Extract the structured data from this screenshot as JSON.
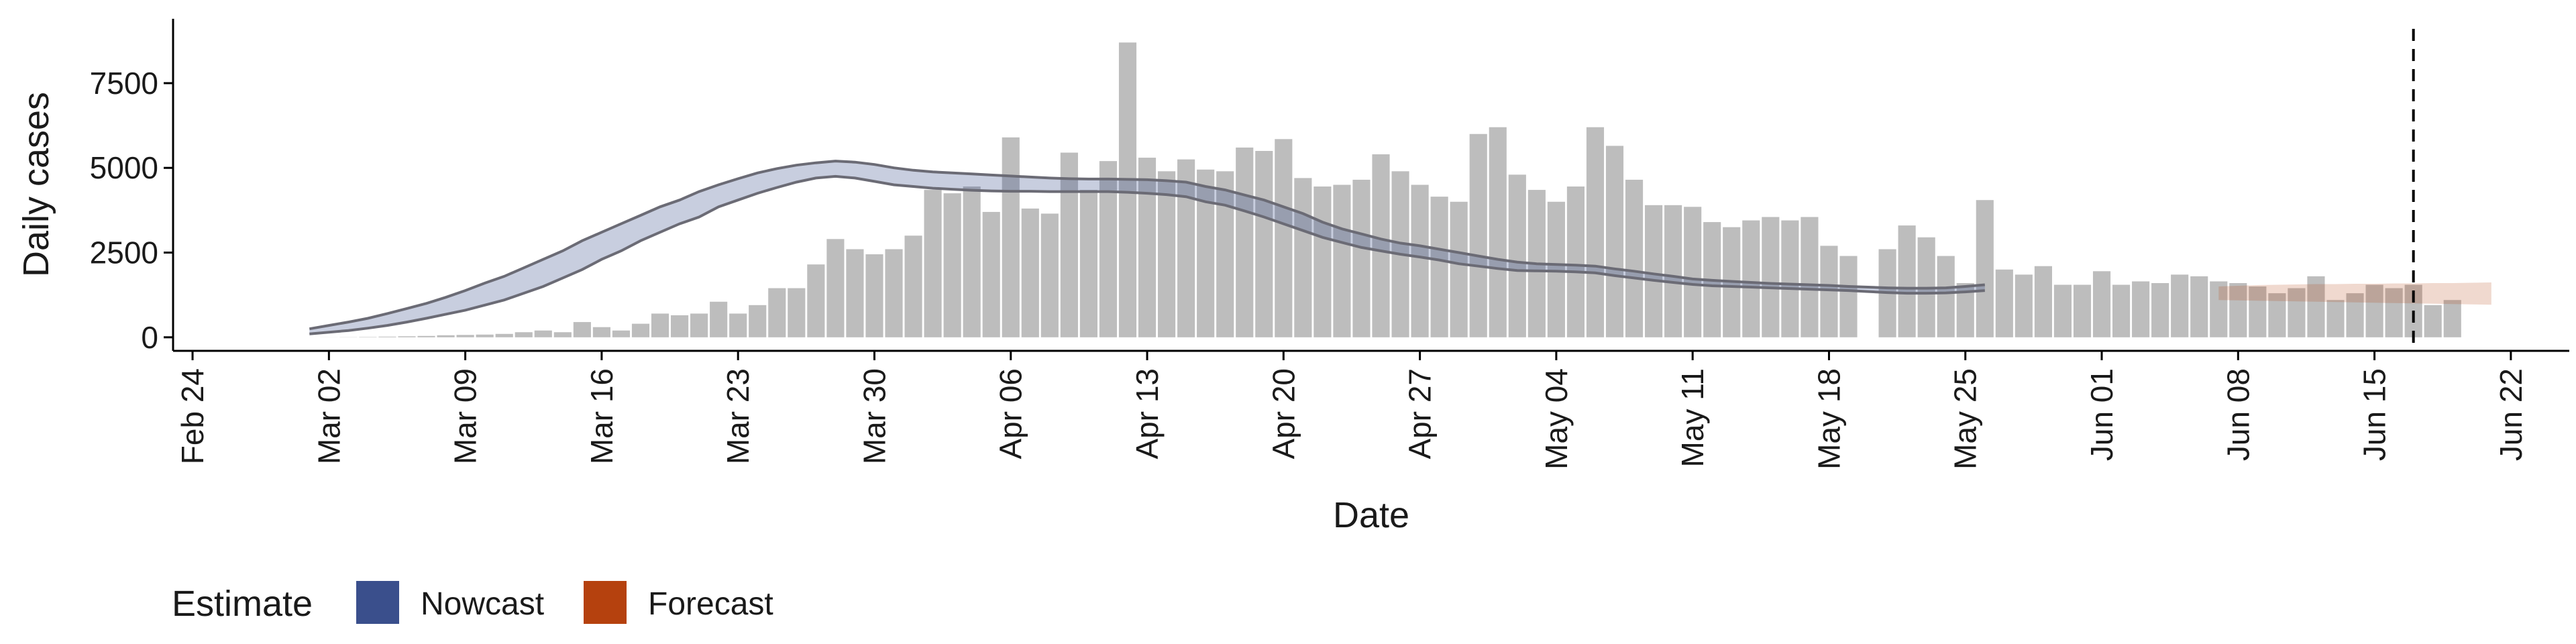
{
  "chart_data": {
    "type": "bar",
    "title": "",
    "xlabel": "Date",
    "ylabel": "Daily cases",
    "ylim": [
      -400,
      9400
    ],
    "xlim": [
      "2020-02-23",
      "2020-06-25"
    ],
    "x_ticks": [
      "Feb 24",
      "Mar 02",
      "Mar 09",
      "Mar 16",
      "Mar 23",
      "Mar 30",
      "Apr 06",
      "Apr 13",
      "Apr 20",
      "Apr 27",
      "May 04",
      "May 11",
      "May 18",
      "May 25",
      "Jun 01",
      "Jun 08",
      "Jun 15",
      "Jun 22"
    ],
    "y_ticks": [
      0,
      2500,
      5000,
      7500
    ],
    "x_tick_dates": [
      "2020-02-24",
      "2020-03-02",
      "2020-03-09",
      "2020-03-16",
      "2020-03-23",
      "2020-03-30",
      "2020-04-06",
      "2020-04-13",
      "2020-04-20",
      "2020-04-27",
      "2020-05-04",
      "2020-05-11",
      "2020-05-18",
      "2020-05-25",
      "2020-06-01",
      "2020-06-08",
      "2020-06-15",
      "2020-06-22"
    ],
    "grid": false,
    "bars": {
      "start_date": "2020-03-02",
      "values": [
        2,
        5,
        10,
        20,
        30,
        40,
        60,
        70,
        80,
        100,
        150,
        200,
        150,
        450,
        300,
        200,
        400,
        700,
        650,
        700,
        1050,
        700,
        950,
        1450,
        1450,
        2150,
        2900,
        2600,
        2450,
        2600,
        3000,
        4350,
        4250,
        4450,
        3700,
        5900,
        3800,
        3650,
        5450,
        4350,
        5200,
        8700,
        5300,
        4900,
        5250,
        4950,
        4900,
        5600,
        5500,
        5850,
        4700,
        4450,
        4500,
        4650,
        5400,
        4900,
        4500,
        4150,
        4000,
        6000,
        6200,
        4800,
        4350,
        4000,
        4450,
        6200,
        5650,
        4650,
        3900,
        3900,
        3850,
        3400,
        3250,
        3450,
        3550,
        3450,
        3550,
        2700,
        2400,
        0,
        2600,
        3300,
        2950,
        2400,
        1600,
        4050,
        2000,
        1850,
        2100,
        1550,
        1550,
        1950,
        1550,
        1650,
        1600,
        1850,
        1800,
        1650,
        1600,
        1500,
        1300,
        1450,
        1800,
        1100,
        1300,
        1550,
        1450,
        1550,
        950,
        1100
      ]
    },
    "series": [
      {
        "name": "Nowcast",
        "color": "#3a4f8c",
        "start_date": "2020-03-01",
        "end_date": "2020-06-07",
        "upper": [
          250,
          350,
          450,
          560,
          700,
          850,
          1000,
          1180,
          1380,
          1600,
          1800,
          2050,
          2300,
          2550,
          2850,
          3100,
          3350,
          3600,
          3850,
          4050,
          4300,
          4500,
          4680,
          4850,
          4980,
          5080,
          5150,
          5200,
          5170,
          5100,
          5000,
          4930,
          4880,
          4850,
          4820,
          4790,
          4760,
          4730,
          4700,
          4680,
          4670,
          4670,
          4660,
          4650,
          4620,
          4580,
          4450,
          4350,
          4200,
          4050,
          3850,
          3650,
          3400,
          3200,
          3050,
          2900,
          2780,
          2700,
          2600,
          2500,
          2400,
          2300,
          2220,
          2170,
          2150,
          2130,
          2100,
          2020,
          1950,
          1870,
          1800,
          1720,
          1680,
          1650,
          1620,
          1590,
          1570,
          1550,
          1530,
          1500,
          1480,
          1460,
          1450,
          1450,
          1460,
          1500,
          1550
        ],
        "lower": [
          100,
          150,
          200,
          270,
          350,
          450,
          560,
          680,
          800,
          950,
          1100,
          1300,
          1500,
          1750,
          2000,
          2300,
          2550,
          2850,
          3100,
          3350,
          3550,
          3850,
          4050,
          4250,
          4420,
          4580,
          4700,
          4750,
          4700,
          4600,
          4500,
          4450,
          4400,
          4370,
          4340,
          4320,
          4310,
          4310,
          4300,
          4300,
          4300,
          4300,
          4280,
          4250,
          4210,
          4150,
          4000,
          3900,
          3730,
          3550,
          3350,
          3150,
          2950,
          2800,
          2650,
          2550,
          2450,
          2370,
          2280,
          2170,
          2100,
          2030,
          1970,
          1960,
          1950,
          1930,
          1900,
          1820,
          1750,
          1680,
          1620,
          1560,
          1520,
          1500,
          1480,
          1460,
          1440,
          1420,
          1400,
          1380,
          1350,
          1320,
          1300,
          1300,
          1310,
          1340,
          1380
        ]
      },
      {
        "name": "Forecast",
        "color": "#b5410e",
        "start_date": "2020-06-07",
        "end_date": "2020-06-21",
        "upper": [
          1500,
          1520,
          1540,
          1550,
          1560,
          1570,
          1570,
          1580,
          1580,
          1590,
          1590,
          1600,
          1600,
          1610,
          1620
        ],
        "lower": [
          1100,
          1090,
          1080,
          1070,
          1060,
          1050,
          1040,
          1030,
          1020,
          1010,
          1000,
          990,
          980,
          970,
          960
        ]
      }
    ],
    "vline": {
      "date": "2020-06-17",
      "style": "dashed"
    },
    "legend": {
      "title": "Estimate",
      "position": "bottom-left",
      "entries": [
        {
          "label": "Nowcast",
          "color": "#3a4f8c"
        },
        {
          "label": "Forecast",
          "color": "#b5410e"
        }
      ]
    }
  }
}
